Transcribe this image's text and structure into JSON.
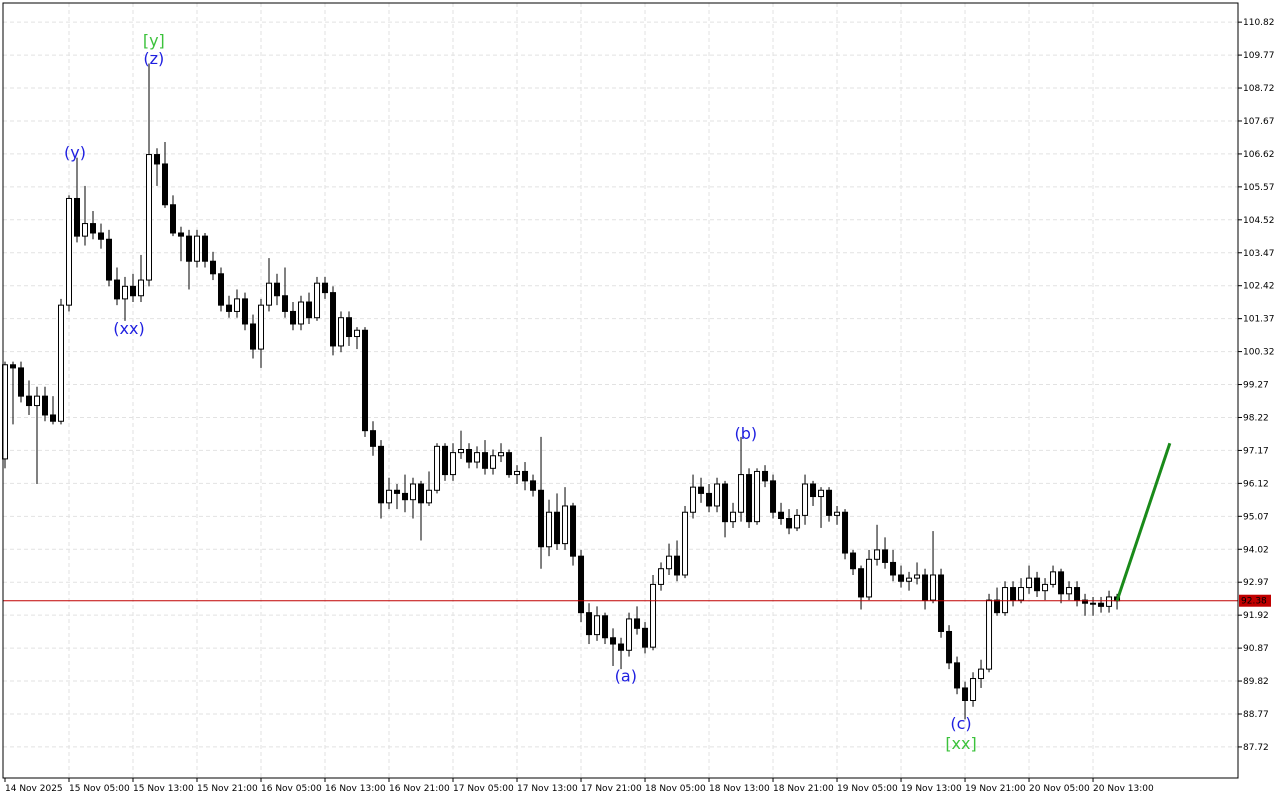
{
  "chart_data": {
    "type": "candlestick",
    "xlim": [
      -0.25,
      154.12
    ],
    "ylim": [
      86.73,
      111.43
    ],
    "yticks": [
      87.72,
      88.77,
      89.82,
      90.87,
      91.92,
      92.97,
      94.02,
      95.07,
      96.12,
      97.17,
      98.22,
      99.27,
      100.32,
      101.37,
      102.42,
      103.47,
      104.52,
      105.57,
      106.62,
      107.67,
      108.72,
      109.77,
      110.82
    ],
    "xticks": [
      {
        "value": 0,
        "label": "14 Nov 2025"
      },
      {
        "value": 8,
        "label": "15 Nov 05:00"
      },
      {
        "value": 16,
        "label": "15 Nov 13:00"
      },
      {
        "value": 24,
        "label": "15 Nov 21:00"
      },
      {
        "value": 32,
        "label": "16 Nov 05:00"
      },
      {
        "value": 40,
        "label": "16 Nov 13:00"
      },
      {
        "value": 48,
        "label": "16 Nov 21:00"
      },
      {
        "value": 56,
        "label": "17 Nov 05:00"
      },
      {
        "value": 64,
        "label": "17 Nov 13:00"
      },
      {
        "value": 72,
        "label": "17 Nov 21:00"
      },
      {
        "value": 80,
        "label": "18 Nov 05:00"
      },
      {
        "value": 88,
        "label": "18 Nov 13:00"
      },
      {
        "value": 96,
        "label": "18 Nov 21:00"
      },
      {
        "value": 104,
        "label": "19 Nov 05:00"
      },
      {
        "value": 112,
        "label": "19 Nov 13:00"
      },
      {
        "value": 120,
        "label": "19 Nov 21:00"
      },
      {
        "value": 128,
        "label": "20 Nov 05:00"
      },
      {
        "value": 136,
        "label": "20 Nov 13:00"
      }
    ],
    "grid": true,
    "bull_color": "#ffffff",
    "bear_color": "#000000",
    "ohlc": [
      [
        96.9,
        100.0,
        96.6,
        99.9
      ],
      [
        99.9,
        100.0,
        98.0,
        99.8
      ],
      [
        99.8,
        100.0,
        98.7,
        98.9
      ],
      [
        98.9,
        99.4,
        98.3,
        98.6
      ],
      [
        98.6,
        99.2,
        96.1,
        98.9
      ],
      [
        98.9,
        99.2,
        98.1,
        98.3
      ],
      [
        98.3,
        98.9,
        98.0,
        98.1
      ],
      [
        98.1,
        102.0,
        98.0,
        101.8
      ],
      [
        101.8,
        105.3,
        101.6,
        105.2
      ],
      [
        105.2,
        106.5,
        103.8,
        104.0
      ],
      [
        104.0,
        105.6,
        103.7,
        104.4
      ],
      [
        104.4,
        104.8,
        103.9,
        104.1
      ],
      [
        104.1,
        104.4,
        103.6,
        103.9
      ],
      [
        103.9,
        104.2,
        102.4,
        102.6
      ],
      [
        102.6,
        103.0,
        101.8,
        102.0
      ],
      [
        102.0,
        102.7,
        101.3,
        102.4
      ],
      [
        102.4,
        102.8,
        101.9,
        102.1
      ],
      [
        102.1,
        103.4,
        101.9,
        102.6
      ],
      [
        102.6,
        109.5,
        102.4,
        106.6
      ],
      [
        106.6,
        106.8,
        105.6,
        106.3
      ],
      [
        106.3,
        107.0,
        104.9,
        105.0
      ],
      [
        105.0,
        105.3,
        104.0,
        104.1
      ],
      [
        104.1,
        104.3,
        103.2,
        104.0
      ],
      [
        104.0,
        104.2,
        102.3,
        103.2
      ],
      [
        103.2,
        104.2,
        103.0,
        104.0
      ],
      [
        104.0,
        104.1,
        103.0,
        103.2
      ],
      [
        103.2,
        103.5,
        102.6,
        102.8
      ],
      [
        102.8,
        103.0,
        101.6,
        101.8
      ],
      [
        101.8,
        102.1,
        101.4,
        101.6
      ],
      [
        101.6,
        102.3,
        101.4,
        102.0
      ],
      [
        102.0,
        102.2,
        101.0,
        101.2
      ],
      [
        101.2,
        101.5,
        100.1,
        100.4
      ],
      [
        100.4,
        102.0,
        99.8,
        101.8
      ],
      [
        101.8,
        103.3,
        101.6,
        102.5
      ],
      [
        102.5,
        102.8,
        101.8,
        102.1
      ],
      [
        102.1,
        103.0,
        101.4,
        101.6
      ],
      [
        101.6,
        101.9,
        101.0,
        101.2
      ],
      [
        101.2,
        102.1,
        101.0,
        101.9
      ],
      [
        101.9,
        102.2,
        101.2,
        101.4
      ],
      [
        101.4,
        102.7,
        101.3,
        102.5
      ],
      [
        102.5,
        102.7,
        102.0,
        102.2
      ],
      [
        102.2,
        102.4,
        100.2,
        100.5
      ],
      [
        100.5,
        101.6,
        100.3,
        101.4
      ],
      [
        101.4,
        101.6,
        100.5,
        100.8
      ],
      [
        100.8,
        101.1,
        100.4,
        101.0
      ],
      [
        101.0,
        101.1,
        97.6,
        97.8
      ],
      [
        97.8,
        98.1,
        97.0,
        97.3
      ],
      [
        97.3,
        97.5,
        95.0,
        95.5
      ],
      [
        95.5,
        96.3,
        95.3,
        95.9
      ],
      [
        95.9,
        96.1,
        95.3,
        95.8
      ],
      [
        95.8,
        96.4,
        95.2,
        95.6
      ],
      [
        95.6,
        96.3,
        95.0,
        96.1
      ],
      [
        96.1,
        96.2,
        94.3,
        95.5
      ],
      [
        95.5,
        96.5,
        95.4,
        95.9
      ],
      [
        95.9,
        97.4,
        95.8,
        97.3
      ],
      [
        97.3,
        97.4,
        96.2,
        96.4
      ],
      [
        96.4,
        97.4,
        96.2,
        97.1
      ],
      [
        97.1,
        97.8,
        96.9,
        97.2
      ],
      [
        97.2,
        97.4,
        96.6,
        96.8
      ],
      [
        96.8,
        97.3,
        96.6,
        97.1
      ],
      [
        97.1,
        97.5,
        96.4,
        96.6
      ],
      [
        96.6,
        97.2,
        96.4,
        97.0
      ],
      [
        97.0,
        97.4,
        96.8,
        97.1
      ],
      [
        97.1,
        97.2,
        96.3,
        96.4
      ],
      [
        96.4,
        96.7,
        96.1,
        96.5
      ],
      [
        96.5,
        96.8,
        95.9,
        96.2
      ],
      [
        96.2,
        96.4,
        95.7,
        95.9
      ],
      [
        95.9,
        97.6,
        93.4,
        94.1
      ],
      [
        94.1,
        95.6,
        93.8,
        95.2
      ],
      [
        95.2,
        95.8,
        94.0,
        94.2
      ],
      [
        94.2,
        96.0,
        94.0,
        95.4
      ],
      [
        95.4,
        95.5,
        93.5,
        93.8
      ],
      [
        93.8,
        94.0,
        91.7,
        92.0
      ],
      [
        92.0,
        92.3,
        91.0,
        91.3
      ],
      [
        91.3,
        92.2,
        91.1,
        91.9
      ],
      [
        91.9,
        92.0,
        91.0,
        91.2
      ],
      [
        91.2,
        91.5,
        90.3,
        91.0
      ],
      [
        91.0,
        91.2,
        90.2,
        90.8
      ],
      [
        90.8,
        92.0,
        90.6,
        91.8
      ],
      [
        91.8,
        92.2,
        91.3,
        91.5
      ],
      [
        91.5,
        91.7,
        90.7,
        90.9
      ],
      [
        90.9,
        93.2,
        90.8,
        92.9
      ],
      [
        92.9,
        93.6,
        92.7,
        93.4
      ],
      [
        93.4,
        94.2,
        93.2,
        93.8
      ],
      [
        93.8,
        94.3,
        93.0,
        93.2
      ],
      [
        93.2,
        95.4,
        93.1,
        95.2
      ],
      [
        95.2,
        96.4,
        95.0,
        96.0
      ],
      [
        96.0,
        96.3,
        95.5,
        95.8
      ],
      [
        95.8,
        96.1,
        95.2,
        95.4
      ],
      [
        95.4,
        96.3,
        95.2,
        96.1
      ],
      [
        96.1,
        96.2,
        94.4,
        94.9
      ],
      [
        94.9,
        95.5,
        94.7,
        95.2
      ],
      [
        95.2,
        97.6,
        94.9,
        96.4
      ],
      [
        96.4,
        96.6,
        94.7,
        94.9
      ],
      [
        94.9,
        96.6,
        94.8,
        96.5
      ],
      [
        96.5,
        96.7,
        96.0,
        96.2
      ],
      [
        96.2,
        96.4,
        95.0,
        95.2
      ],
      [
        95.2,
        95.5,
        94.8,
        95.0
      ],
      [
        95.0,
        95.3,
        94.5,
        94.7
      ],
      [
        94.7,
        95.3,
        94.6,
        95.1
      ],
      [
        95.1,
        96.4,
        94.8,
        96.1
      ],
      [
        96.1,
        96.2,
        95.4,
        95.7
      ],
      [
        95.7,
        96.0,
        94.7,
        95.9
      ],
      [
        95.9,
        96.0,
        94.9,
        95.1
      ],
      [
        95.1,
        95.4,
        94.8,
        95.2
      ],
      [
        95.2,
        95.3,
        93.7,
        93.9
      ],
      [
        93.9,
        94.0,
        93.2,
        93.4
      ],
      [
        93.4,
        93.5,
        92.1,
        92.5
      ],
      [
        92.5,
        94.0,
        92.4,
        93.7
      ],
      [
        93.7,
        94.8,
        93.5,
        94.0
      ],
      [
        94.0,
        94.4,
        93.4,
        93.6
      ],
      [
        93.6,
        94.0,
        93.0,
        93.2
      ],
      [
        93.2,
        93.5,
        92.8,
        93.0
      ],
      [
        93.0,
        93.3,
        92.7,
        93.1
      ],
      [
        93.1,
        93.6,
        92.9,
        93.2
      ],
      [
        93.2,
        93.4,
        92.1,
        92.4
      ],
      [
        92.4,
        94.6,
        92.3,
        93.2
      ],
      [
        93.2,
        93.4,
        91.2,
        91.4
      ],
      [
        91.4,
        91.6,
        90.2,
        90.4
      ],
      [
        90.4,
        90.6,
        89.4,
        89.6
      ],
      [
        89.6,
        89.8,
        88.6,
        89.2
      ],
      [
        89.2,
        90.1,
        89.0,
        89.9
      ],
      [
        89.9,
        90.5,
        89.6,
        90.2
      ],
      [
        90.2,
        92.6,
        90.1,
        92.4
      ],
      [
        92.4,
        92.8,
        91.9,
        92.0
      ],
      [
        92.0,
        93.0,
        91.9,
        92.8
      ],
      [
        92.8,
        93.0,
        92.2,
        92.4
      ],
      [
        92.4,
        93.1,
        92.3,
        92.8
      ],
      [
        92.8,
        93.5,
        92.6,
        93.1
      ],
      [
        93.1,
        93.3,
        92.5,
        92.7
      ],
      [
        92.7,
        93.1,
        92.4,
        92.9
      ],
      [
        92.9,
        93.5,
        92.8,
        93.3
      ],
      [
        93.3,
        93.4,
        92.3,
        92.6
      ],
      [
        92.6,
        93.0,
        92.4,
        92.8
      ],
      [
        92.8,
        93.0,
        92.2,
        92.4
      ],
      [
        92.4,
        92.6,
        91.9,
        92.3
      ],
      [
        92.3,
        92.5,
        91.9,
        92.3
      ],
      [
        92.3,
        92.5,
        92.0,
        92.2
      ],
      [
        92.2,
        92.7,
        92.0,
        92.5
      ],
      [
        92.5,
        92.6,
        92.1,
        92.38
      ]
    ],
    "last_price": 92.38,
    "last_price_color": "#c00000",
    "forecast": {
      "color": "#1a8a1a",
      "x": [
        139,
        145.6
      ],
      "values": [
        92.38,
        97.4
      ]
    },
    "annotations": [
      {
        "text": "(y)",
        "x": 8.75,
        "y": 106.68,
        "color": "#1f1fe0"
      },
      {
        "text": "[y]",
        "x": 18.6,
        "y": 110.25,
        "color": "#3cc23c"
      },
      {
        "text": "(z)",
        "x": 18.6,
        "y": 109.67,
        "color": "#1f1fe0"
      },
      {
        "text": "(xx)",
        "x": 15.5,
        "y": 101.07,
        "color": "#1f1fe0"
      },
      {
        "text": "(a)",
        "x": 77.6,
        "y": 90.0,
        "color": "#1f1fe0"
      },
      {
        "text": "(b)",
        "x": 92.6,
        "y": 97.73,
        "color": "#1f1fe0"
      },
      {
        "text": "(c)",
        "x": 119.5,
        "y": 88.49,
        "color": "#1f1fe0"
      },
      {
        "text": "[xx]",
        "x": 119.5,
        "y": 87.85,
        "color": "#3cc23c"
      }
    ]
  }
}
